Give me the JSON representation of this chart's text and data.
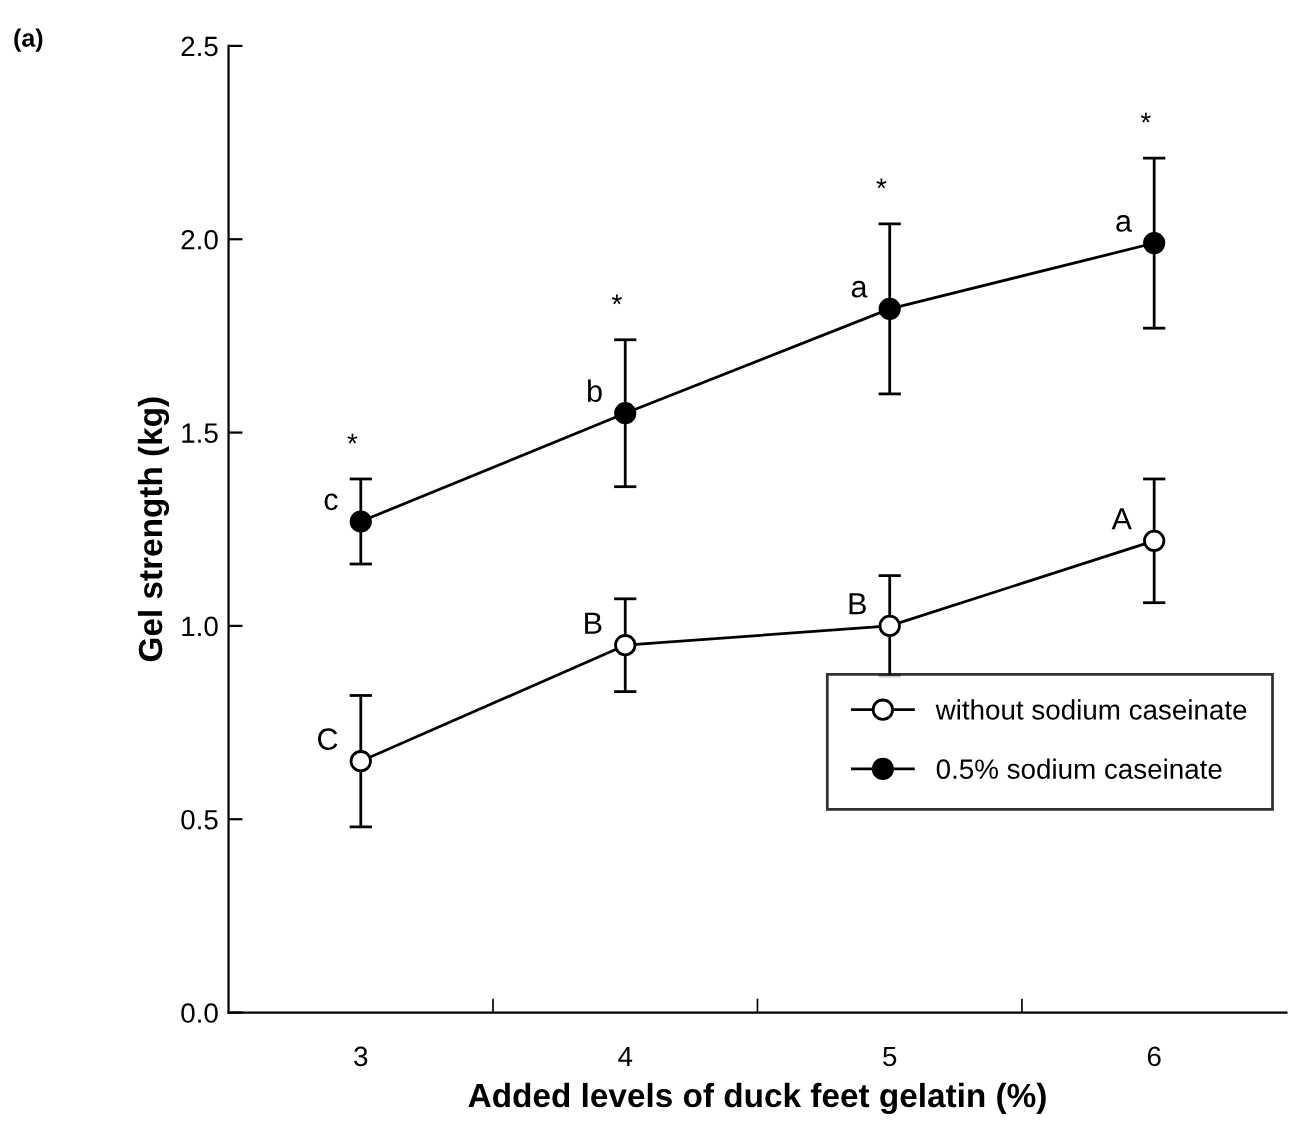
{
  "chart_data": {
    "type": "line",
    "xlabel": "Added levels of duck feet gelatin (%)",
    "ylabel": "Gel strength (kg)",
    "categories": [
      "3",
      "4",
      "5",
      "6"
    ],
    "series": [
      {
        "name": "without sodium caseinate",
        "color": "#000000",
        "marker": "circle",
        "values": [
          0.65,
          0.95,
          1.0,
          1.22
        ],
        "errors": [
          0.17,
          0.12,
          0.13,
          0.16
        ]
      },
      {
        "name": "0.5% sodium caseinate",
        "color": "#000000",
        "marker": "circle",
        "values": [
          1.27,
          1.55,
          1.82,
          1.99
        ],
        "errors": [
          0.11,
          0.19,
          0.22,
          0.22
        ]
      }
    ],
    "ylim": [
      0,
      2.5
    ],
    "yticks": [
      {
        "value": 0,
        "label": "0.0"
      },
      {
        "value": 0.5,
        "label": "0.5"
      },
      {
        "value": 1,
        "label": "1.0"
      },
      {
        "value": 1.5,
        "label": "1.5"
      },
      {
        "value": 2,
        "label": "2.0"
      },
      {
        "value": 2.5,
        "label": "2.5"
      }
    ],
    "grid": false,
    "legend": "center right",
    "line_style": "solid",
    "annotations": [
      "(a)",
      {
        "text": "C",
        "x": "3",
        "y": 0.65
      },
      {
        "text": "B",
        "x": "4",
        "y": 0.95
      },
      {
        "text": "B",
        "x": "5",
        "y": 1.0
      },
      {
        "text": "A",
        "x": "6",
        "y": 1.22
      },
      {
        "text": "c",
        "x": "3",
        "y": 1.27
      },
      {
        "text": "b",
        "x": "4",
        "y": 1.55
      },
      {
        "text": "a",
        "x": "5",
        "y": 1.82
      },
      {
        "text": "a",
        "x": "6",
        "y": 1.99
      },
      "*",
      "*",
      "*",
      "*"
    ]
  }
}
